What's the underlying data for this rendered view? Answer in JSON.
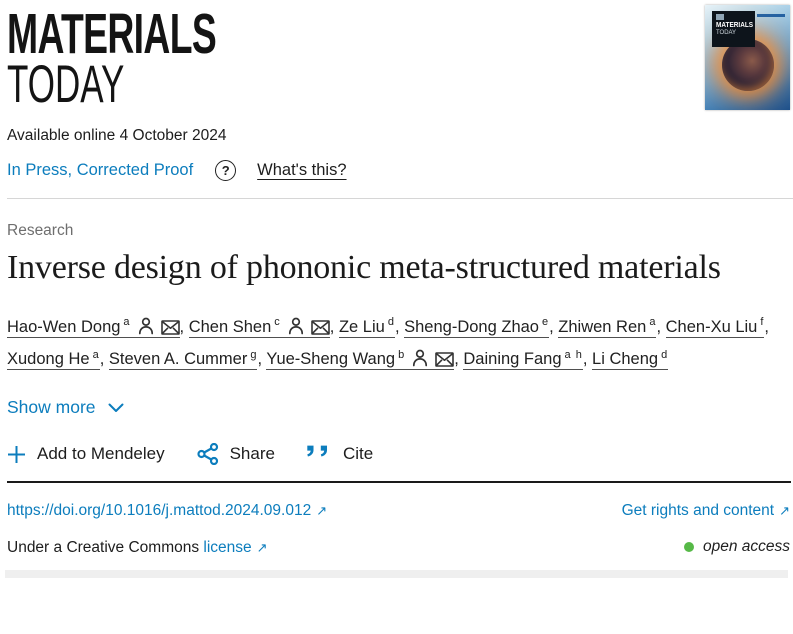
{
  "journal": {
    "logo_line1": "MATERIALS",
    "logo_line2": "TODAY",
    "cover_line1": "MATERIALS",
    "cover_line2": "TODAY"
  },
  "meta": {
    "available_online": "Available online 4 October 2024",
    "in_press_label": "In Press, Corrected Proof",
    "whats_this_label": "What's this?"
  },
  "icons": {
    "help": "?",
    "external_link": "↗"
  },
  "article": {
    "section_label": "Research",
    "title": "Inverse design of phononic meta-structured materials"
  },
  "authors": [
    {
      "name": "Hao-Wen Dong",
      "sup": "a",
      "person": true,
      "email": true
    },
    {
      "name": "Chen Shen",
      "sup": "c",
      "person": true,
      "email": true
    },
    {
      "name": "Ze Liu",
      "sup": "d",
      "person": false,
      "email": false
    },
    {
      "name": "Sheng-Dong Zhao",
      "sup": "e",
      "person": false,
      "email": false
    },
    {
      "name": "Zhiwen Ren",
      "sup": "a",
      "person": false,
      "email": false
    },
    {
      "name": "Chen-Xu Liu",
      "sup": "f",
      "person": false,
      "email": false
    },
    {
      "name": "Xudong He",
      "sup": "a",
      "person": false,
      "email": false
    },
    {
      "name": "Steven A. Cummer",
      "sup": "g",
      "person": false,
      "email": false
    },
    {
      "name": "Yue-Sheng Wang",
      "sup": "b",
      "person": true,
      "email": true
    },
    {
      "name": "Daining Fang",
      "sup": "a h",
      "person": false,
      "email": false
    },
    {
      "name": "Li Cheng",
      "sup": "d",
      "person": false,
      "email": false
    }
  ],
  "show_more": {
    "label": "Show more"
  },
  "actions": {
    "mendeley_label": "Add to Mendeley",
    "share_label": "Share",
    "cite_label": "Cite"
  },
  "footer": {
    "doi": "https://doi.org/10.1016/j.mattod.2024.09.012",
    "rights_label": "Get rights and content",
    "license_prefix": "Under a Creative Commons",
    "license_link_label": "license",
    "open_access_label": "open access"
  },
  "colors": {
    "link_blue": "#0c7dbd",
    "open_access_green": "#56b947",
    "text": "#212121",
    "muted_gray": "#6e6e6e"
  }
}
